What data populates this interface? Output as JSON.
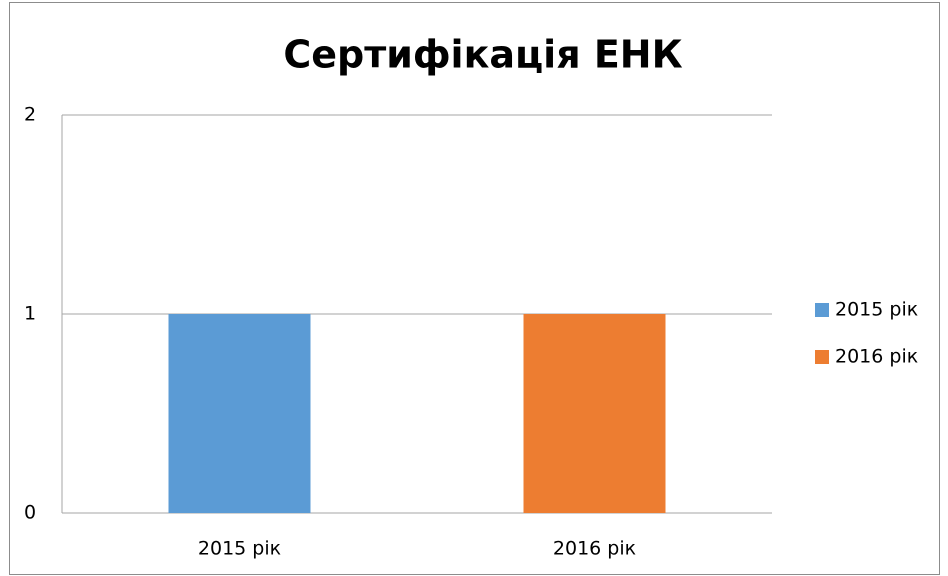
{
  "chart_data": {
    "type": "bar",
    "title": "Сертифікація ЕНК",
    "categories": [
      "2015 рік",
      "2016 рік"
    ],
    "series": [
      {
        "name": "2015 рік",
        "color": "#5b9bd5",
        "values": [
          1,
          null
        ]
      },
      {
        "name": "2016 рік",
        "color": "#ed7d31",
        "values": [
          null,
          1
        ]
      }
    ],
    "ylim": [
      0,
      2
    ],
    "yticks": [
      0,
      1,
      2
    ],
    "grid": true,
    "legend": "right"
  }
}
